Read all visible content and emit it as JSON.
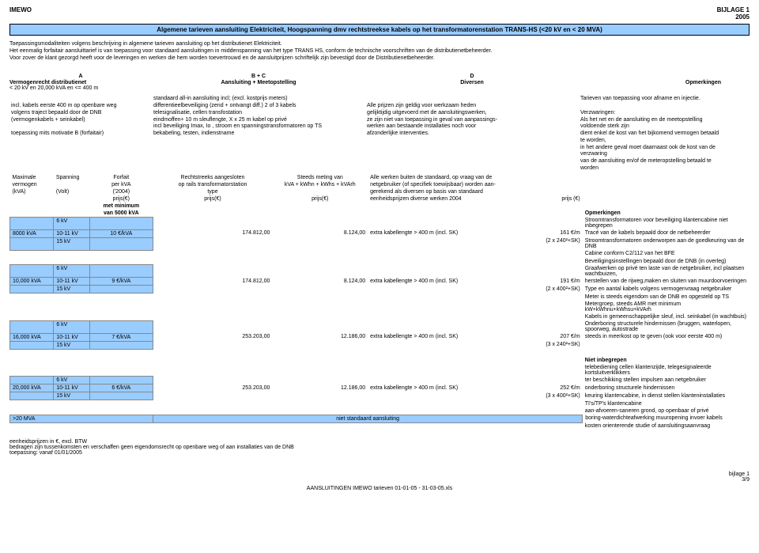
{
  "header": {
    "left": "IMEWO",
    "right_top": "BIJLAGE 1",
    "right_bottom": "2005"
  },
  "title": "Algemene tarieven aansluiting Elektriciteit, Hoogspanning dmv rechtstreekse kabels op het transformatorenstation TRANS-HS (<20 kV en < 20 MVA)",
  "intro": {
    "l1": "Toepassingsmodaliteiten volgens beschrijving in algemene tarieven aansluiting op het distributienet Elektriciteit.",
    "l2": "Het eenmalig forfaitair aansluittarief is van toepassing voor standaard aansluitingen in middenspanning van het type TRANS HS, conform de technische voorschriften van de distributienetbeheerder.",
    "l3": "Voor zover de klant gezorgd heeft voor de leveringen en werken die hem worden toevertrouwd en de aansluitprijzen schriftelijk zijn bevestigd door de Distributienetbeheerder."
  },
  "cols": {
    "A": "A",
    "BC": "B + C",
    "D": "D",
    "A_sub": "Vermogenrecht distributienet",
    "BC_sub": "Aansluiting + Meetopstelling",
    "D_sub": "Diversen",
    "Op_sub": "Opmerkingen",
    "A_sub2": "< 20 kV en 20,000 kVA en <= 400 m"
  },
  "desc": {
    "A1": "incl. kabels eerste 400 m op openbare weg",
    "A2": "volgens traject bepaald door de DNB",
    "A3": "(vermogenkabels + seinkabel)",
    "A4": "toepassing mits motivatie B (forfaitair)",
    "BC0": "standaard all-in aansluiting incl;               (excl. kostprijs meters)",
    "BC1": "differentieelbeveiliging (zend + ontvangt diff.) 2 of 3 kabels",
    "BC2": "telesignalisatie, cellen transfostation",
    "BC3": "eindmoffen+ 10 m sleuflengte, X x 25 m kabel op privé",
    "BC4": "incl beveiliging Imax, Io , stroom en spanningstransformatoren op TS",
    "BC5": "bekabeling, testen, indienstname",
    "D1": "Alle prijzen zijn geldig voor werkzaam heden",
    "D2": "gelijktijdig uitgevoerd met de aansluitingswerken,",
    "D3": "ze zijn niet van toepassing in geval van aanpassings-",
    "D4": "werken aan bestaande installaties noch voor",
    "D5": "afzonderlijke interventies.",
    "Op1": "Tarieven van toepassing voor afname en injectie.",
    "Op2": "Verzwaringen:",
    "Op3": "Als het net en de aansluiting en de meetopstelling voldoende sterk zijn",
    "Op4": "dient enkel de kost van het bijkomend vermogen betaald te worden,",
    "Op5": "in het andere geval moet daarnaast ook de kost van de verzwaring",
    "Op6": "van de aansluiting en/of de meteropstelling betaald te worden"
  },
  "th": {
    "c1a": "Maximale",
    "c1b": "vermogen",
    "c1c": "(kVA)",
    "c2a": "Spanning",
    "c2c": "(Volt)",
    "c3a": "Forfait",
    "c3b": "per kVA",
    "c3c": "('2004)",
    "c3d": "prijs(€)",
    "c3e": "met minimum",
    "c3f": "van 5000 kVA",
    "c4a": "Rechtstreeks aangesloten",
    "c4b": "op rails transformatorstation",
    "c4c": "type",
    "c4d": "prijs(€)",
    "c5a": "Steeds meting van",
    "c5b": "kVA + kWhn + kWhs + kVArh",
    "c5d": "prijs(€)",
    "c6a": "Alle werken buiten de standaard, op vraag van de",
    "c6b": "netgebruiker (of specifiek toewijsbaar) worden aan-",
    "c6c": "gerekend als diversen op basis van standaard",
    "c6d": "eenheidsprijzen diverse werken 2004",
    "c7d": "prijs (€)"
  },
  "rows": [
    {
      "kva": "8000 kVA",
      "v1": "6 kV",
      "v2": "10-11 kV",
      "v3": "15 kV",
      "forfait": "10 €/kVA",
      "col4": "174.812,00",
      "col5": "8.124,00",
      "col6": "extra kabellengte > 400 m (incl. SK)",
      "p1": "161 €/m",
      "p2": "(2 x 240²+SK)"
    },
    {
      "kva": "10,000 kVA",
      "v1": "6 kV",
      "v2": "10-11 kV",
      "v3": "15 kV",
      "forfait": "9 €/kVA",
      "col4": "174.812,00",
      "col5": "8.124,00",
      "col6": "extra kabellengte > 400 m (incl. SK)",
      "p1": "191 €/m",
      "p2": "(2 x 400²+SK)"
    },
    {
      "kva": "16,000 kVA",
      "v1": "6 kV",
      "v2": "10-11 kV",
      "v3": "15 kV",
      "forfait": "7 €/kVA",
      "col4": "253.203,00",
      "col5": "12.186,00",
      "col6": "extra kabellengte > 400 m (incl. SK)",
      "p1": "207 €/m",
      "p2": "(3 x 240²+SK)"
    },
    {
      "kva": "20,000 kVA",
      "v1": "6 kV",
      "v2": "10-11 kV",
      "v3": "15 kV",
      "forfait": "6 €/kVA",
      "col4": "253.203,00",
      "col5": "12.186,00",
      "col6": "extra kabellengte > 400 m (incl. SK)",
      "p1": "252 €/m",
      "p2": "(3 x 400²+SK)"
    }
  ],
  "last_row": {
    "label": ">20 MVA",
    "text": "niet standaard aansluiting"
  },
  "opm": {
    "h": "Opmerkingen",
    "l1": "Stroomtransformatoren voor beveiliging klantencabine niet inbegrepen",
    "l2": "Tracé van de kabels bepaald door de netbeheerder",
    "l3": "Stroomtransformatoren onderworpen aan de goedkeuring van de DNB",
    "l4": "Cabine conform C2/112 van het BFE",
    "l5": "Beveiligingsinstellingen bepaald door de DNB (in overleg)",
    "l6": "Graafwerken op privé ten laste van de netgebruiker, incl plaatsen wachtbuizen,",
    "l7": "herstellen van de rijweg,maken en sluiten van muurdoorvoeringen",
    "l8": "Type en aantal kabels volgens vermogenvraag netgebruiker",
    "l9": "Meter is steeds eigendom van de DNB en opgesteld op TS",
    "l10": "Metergroep, steeds AMR met minimum kW+kWhnu+kWhsu+kVArh",
    "l11": "Kabels in gemeenschappelijke sleuf, incl. seinkabel (in wachtbuis)",
    "l12": "Onderboring structurele hindernissen (bruggen, waterlopen, spoorweg, autostrade",
    "l13": "steeds in meerkost op te geven (ook voor eerste 400 m)"
  },
  "niet": {
    "h": "Niet inbegrepen",
    "l1": "telebediening cellen klantenzijde, telegesignaleerde kortsluitverklikkers",
    "l2": "ter beschikking stellen impulsen aan netgebruiker",
    "l3": "onderboring structurele hindernissen",
    "l4": "keuring klantencabine, in dienst stellen klanteninstallaties",
    "l5": "TI's/TP's klantencabine",
    "l6": "aan-afvoeren-saneren grond, op openbaar of privé",
    "l7": "boring-waterdichteafwerking muuropening invoer kabels",
    "l8": "kosten orienterende studie of aansluitingsaanvraag"
  },
  "footer": {
    "l1": "eenheidsprijzen in €, excl. BTW",
    "l2": "bedragen zijn tussenkomsten en verschaffen geen eigendomsrecht op openbare weg of aan installaties van de DNB",
    "l3": "toepassing: vanaf 01/01/2005",
    "r1": "bijlage 1",
    "r2": "3/9",
    "center": "AANSLUITINGEN IMEWO tarieven 01-01-05 - 31-03-05.xls"
  },
  "colors": {
    "blue": "#99ccff"
  }
}
